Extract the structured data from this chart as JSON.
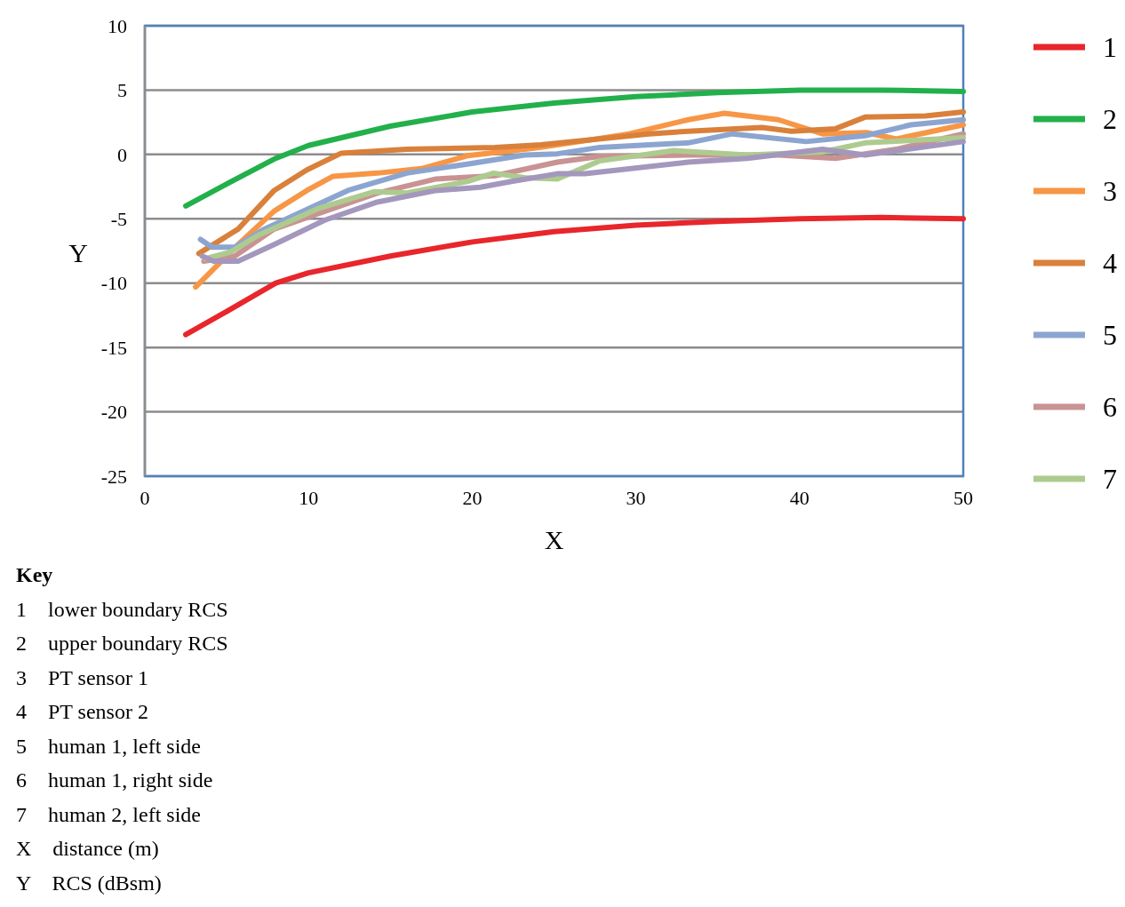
{
  "chart_data": {
    "type": "line",
    "xlabel": "X",
    "ylabel": "Y",
    "xlim": [
      0,
      50
    ],
    "xticks": [
      0,
      10,
      20,
      30,
      40,
      50
    ],
    "ylim": [
      -25,
      10
    ],
    "yticks": [
      -25,
      -20,
      -15,
      -10,
      -5,
      0,
      5,
      10
    ],
    "grid": "y",
    "legend": "right",
    "line_style": "solid",
    "marker": "none",
    "series": [
      {
        "name": "1",
        "color": "#e8262b",
        "x": [
          2.5,
          5,
          8,
          10,
          15,
          20,
          25,
          30,
          35,
          40,
          45,
          50
        ],
        "values": [
          -14,
          -12.2,
          -10,
          -9.2,
          -7.9,
          -6.8,
          -6.0,
          -5.5,
          -5.2,
          -5.0,
          -4.9,
          -5.0
        ]
      },
      {
        "name": "2",
        "color": "#22b04b",
        "x": [
          2.5,
          5,
          8,
          10,
          15,
          20,
          25,
          30,
          35,
          40,
          45,
          50
        ],
        "values": [
          -4,
          -2.3,
          -0.3,
          0.7,
          2.2,
          3.3,
          4.0,
          4.5,
          4.8,
          5.0,
          5.0,
          4.9
        ]
      },
      {
        "name": "3",
        "color": "#f79646",
        "x": [
          3.1,
          5.7,
          7.9,
          9.9,
          11.5,
          14.2,
          16.9,
          19.7,
          23.2,
          24.2,
          29.6,
          33.2,
          35.4,
          38.7,
          41.4,
          44.1,
          45.9,
          50
        ],
        "values": [
          -10.3,
          -7.0,
          -4.4,
          -2.8,
          -1.7,
          -1.45,
          -1.1,
          -0.1,
          0.4,
          0.55,
          1.6,
          2.7,
          3.2,
          2.7,
          1.6,
          1.7,
          1.2,
          2.3
        ]
      },
      {
        "name": "4",
        "color": "#d9803a",
        "x": [
          3.3,
          5.7,
          7.9,
          9.9,
          12,
          16,
          21.4,
          24.2,
          30.8,
          33.2,
          37.7,
          39.5,
          42.2,
          44,
          47.7,
          50
        ],
        "values": [
          -7.7,
          -5.8,
          -2.8,
          -1.2,
          0.1,
          0.4,
          0.55,
          0.75,
          1.6,
          1.8,
          2.1,
          1.8,
          2.0,
          2.9,
          3.0,
          3.3
        ]
      },
      {
        "name": "5",
        "color": "#8ca5d0",
        "x": [
          3.4,
          4.1,
          5.5,
          7.3,
          9.7,
          12.4,
          16,
          19.7,
          23.2,
          25.2,
          27.8,
          33.2,
          35.9,
          40.4,
          44,
          46.8,
          50
        ],
        "values": [
          -6.6,
          -7.2,
          -7.2,
          -5.8,
          -4.4,
          -2.8,
          -1.45,
          -0.75,
          -0.05,
          0.05,
          0.55,
          0.9,
          1.6,
          1.0,
          1.45,
          2.3,
          2.7
        ]
      },
      {
        "name": "6",
        "color": "#c99393",
        "x": [
          3.6,
          5.5,
          7.9,
          10.6,
          14.2,
          17.8,
          21.4,
          25.2,
          27.8,
          33.2,
          38.7,
          42.2,
          45.9,
          50
        ],
        "values": [
          -8.3,
          -7.9,
          -5.8,
          -4.6,
          -3.0,
          -1.9,
          -1.65,
          -0.6,
          -0.15,
          -0.05,
          -0.05,
          -0.3,
          0.4,
          1.6
        ]
      },
      {
        "name": "7",
        "color": "#aecb8f",
        "x": [
          3.7,
          5.2,
          6.9,
          10.6,
          14,
          16,
          19.7,
          21.3,
          23.2,
          25.2,
          27.8,
          32.3,
          36.8,
          41.4,
          44,
          50
        ],
        "values": [
          -8.1,
          -7.6,
          -6.3,
          -4.2,
          -2.9,
          -3.0,
          -2.1,
          -1.45,
          -1.8,
          -1.9,
          -0.5,
          0.3,
          -0.05,
          0.2,
          0.9,
          1.3
        ]
      },
      {
        "color": "#a497bd",
        "x": [
          3.5,
          4.2,
          5.7,
          7.9,
          11,
          14.2,
          17.8,
          20.5,
          22.4,
          25.2,
          26.9,
          33.2,
          36.8,
          41.4,
          44,
          50
        ],
        "values": [
          -7.9,
          -8.3,
          -8.3,
          -7.0,
          -5.1,
          -3.7,
          -2.8,
          -2.55,
          -2.1,
          -1.5,
          -1.5,
          -0.6,
          -0.3,
          0.4,
          -0.05,
          1.0
        ]
      }
    ],
    "annotations": [
      "Key",
      "1    lower boundary RCS",
      "2    upper boundary RCS",
      "3    PT sensor 1",
      "4    PT sensor 2",
      "5    human 1, left side",
      "6    human 1, right side",
      "7    human 2, left side",
      "X    distance (m)",
      "Y    RCS (dBsm)"
    ]
  }
}
